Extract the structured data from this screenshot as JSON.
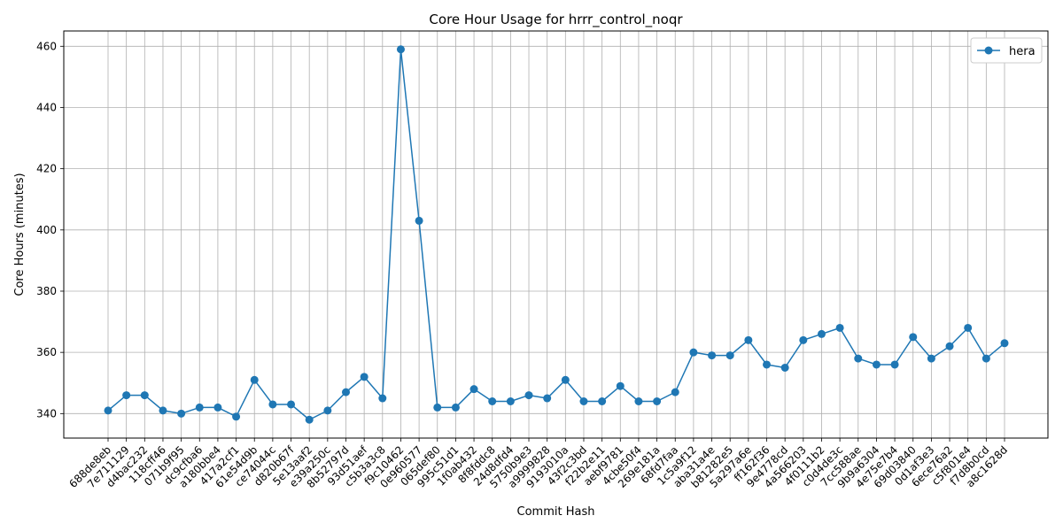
{
  "chart_data": {
    "type": "line",
    "title": "Core Hour Usage for hrrr_control_noqr",
    "xlabel": "Commit Hash",
    "ylabel": "Core Hours (minutes)",
    "ylim": [
      332,
      465
    ],
    "yticks": [
      340,
      360,
      380,
      400,
      420,
      440,
      460
    ],
    "grid": true,
    "legend_position": "top-right",
    "categories": [
      "688de8eb",
      "7e711129",
      "d4bac232",
      "118cff46",
      "071b9f95",
      "dc9cfba6",
      "a180bbe4",
      "417a2cf1",
      "61e54d9b",
      "ce74044c",
      "d820b67f",
      "5e13aaf2",
      "e39a250c",
      "8b52797d",
      "93d51aef",
      "c5b3a3c8",
      "f9c10462",
      "0e960577",
      "065def80",
      "995c51d1",
      "1f0ab432",
      "8f8fddc8",
      "24d8dfd4",
      "5750b9e3",
      "a9999828",
      "9193010a",
      "43f2c3bd",
      "f22b2e11",
      "aebf9781",
      "4cbe50f4",
      "269e181a",
      "68fd7faa",
      "1c5a9f12",
      "aba31a4e",
      "b81282e5",
      "5a297a6e",
      "ff162f36",
      "9e4778cd",
      "4a566203",
      "4f0111b2",
      "c0d4de3c",
      "7cc588ae",
      "9b9a6304",
      "4e75e7b4",
      "69d03840",
      "0d1af3e3",
      "6ece76a2",
      "c5f801e4",
      "f7d8b0cd",
      "a8c1628d"
    ],
    "series": [
      {
        "name": "hera",
        "color": "#1f77b4",
        "values": [
          341,
          346,
          346,
          341,
          340,
          342,
          342,
          339,
          351,
          343,
          343,
          338,
          341,
          347,
          352,
          345,
          459,
          403,
          342,
          342,
          348,
          344,
          344,
          346,
          345,
          351,
          344,
          344,
          349,
          344,
          344,
          347,
          360,
          359,
          359,
          364,
          356,
          355,
          364,
          366,
          368,
          358,
          356,
          356,
          365,
          358,
          362,
          368,
          358,
          363
        ]
      }
    ]
  }
}
